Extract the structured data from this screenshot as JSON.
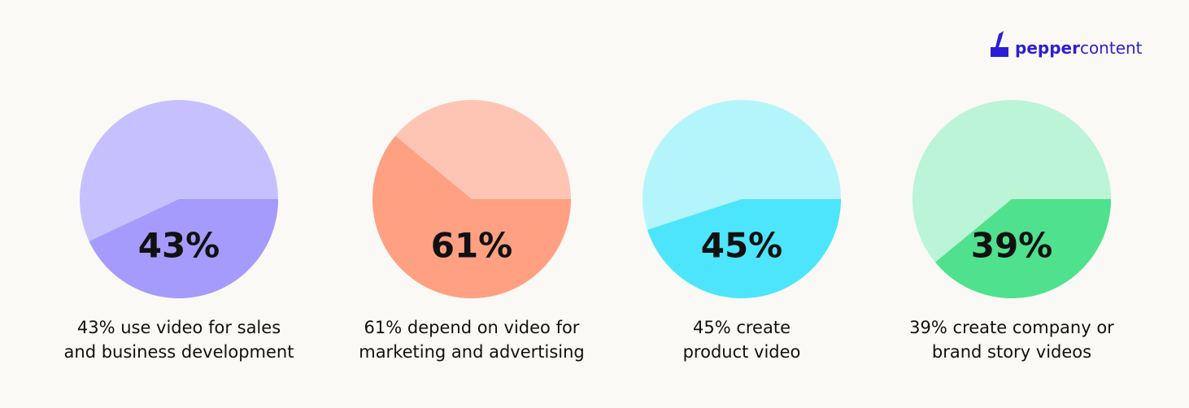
{
  "logo": {
    "bold": "pepper",
    "regular": "content"
  },
  "chart_data": [
    {
      "type": "pie",
      "values": [
        43
      ],
      "value_labels": [
        "43%"
      ],
      "color": "#a49bfd",
      "rest_color": "#c6c1fe",
      "caption": [
        "43% use video for sales",
        "and business development"
      ]
    },
    {
      "type": "pie",
      "values": [
        61
      ],
      "value_labels": [
        "61%"
      ],
      "color": "#ffa083",
      "rest_color": "#ffc5b4",
      "caption": [
        "61% depend on video for",
        "marketing and advertising"
      ]
    },
    {
      "type": "pie",
      "values": [
        45
      ],
      "value_labels": [
        "45%"
      ],
      "color": "#4de5fb",
      "rest_color": "#b4f5fc",
      "caption": [
        "45% create",
        "product video"
      ]
    },
    {
      "type": "pie",
      "values": [
        39
      ],
      "value_labels": [
        "39%"
      ],
      "color": "#4fe18e",
      "rest_color": "#bbf4d7",
      "caption": [
        "39% create company or",
        "brand story videos"
      ]
    }
  ]
}
